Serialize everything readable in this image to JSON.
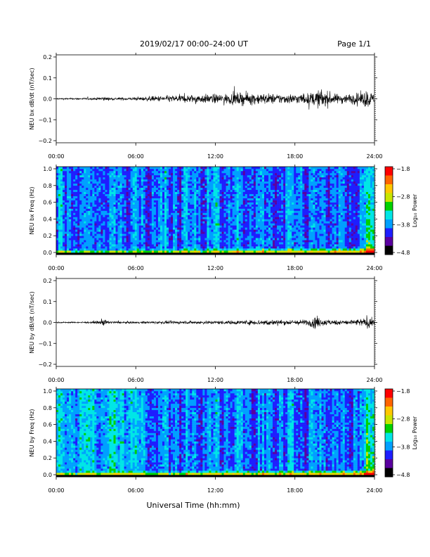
{
  "header": {
    "title": "2019/02/17  00:00–24:00 UT",
    "page": "Page 1/1"
  },
  "footer": {
    "xlabel": "Universal Time (hh:mm)"
  },
  "chart_data": [
    {
      "type": "line",
      "ylabel": "NEU bx dB/dt (nT/sec)",
      "xlim": [
        0,
        24
      ],
      "ylim": [
        -0.2,
        0.2
      ],
      "yticks": [
        "0.2",
        "0.1",
        "0.0",
        "−0.1",
        "−0.2"
      ],
      "xticks": [
        "00:00",
        "06:00",
        "12:00",
        "18:00",
        "24:00"
      ],
      "envelope": {
        "x": [
          0,
          1,
          2,
          3,
          3.5,
          4,
          5,
          6,
          7,
          8,
          9,
          10,
          11,
          12,
          13,
          14,
          15,
          16,
          17,
          18,
          19,
          19.5,
          20,
          20.5,
          21,
          22,
          23,
          23.5,
          24
        ],
        "amp": [
          0.006,
          0.006,
          0.008,
          0.009,
          0.02,
          0.01,
          0.012,
          0.012,
          0.02,
          0.025,
          0.03,
          0.033,
          0.036,
          0.038,
          0.043,
          0.05,
          0.048,
          0.043,
          0.04,
          0.04,
          0.045,
          0.06,
          0.08,
          0.06,
          0.04,
          0.04,
          0.05,
          0.08,
          0.03
        ]
      }
    },
    {
      "type": "heatmap",
      "ylabel": "NEU bx Freq (Hz)",
      "xlim": [
        0,
        24
      ],
      "ylim": [
        0,
        1.0
      ],
      "yticks": [
        "1.0",
        "0.8",
        "0.6",
        "0.4",
        "0.2",
        "0.0"
      ],
      "xticks": [
        "00:00",
        "06:00",
        "12:00",
        "18:00",
        "24:00"
      ],
      "colorbar": {
        "label": "Log₁₀ Power",
        "range": [
          -4.8,
          -1.8
        ],
        "ticks": [
          "−1.8",
          "−2.8",
          "−3.8",
          "−4.8"
        ]
      },
      "colors": [
        "#000000",
        "#5a00a0",
        "#1e1eff",
        "#00a0ff",
        "#00e6e6",
        "#00d200",
        "#c8e600",
        "#ffc800",
        "#ff6400",
        "#ff0000"
      ]
    },
    {
      "type": "line",
      "ylabel": "NEU by dB/dt (nT/sec)",
      "xlim": [
        0,
        24
      ],
      "ylim": [
        -0.2,
        0.2
      ],
      "yticks": [
        "0.2",
        "0.1",
        "0.0",
        "−0.1",
        "−0.2"
      ],
      "xticks": [
        "00:00",
        "06:00",
        "12:00",
        "18:00",
        "24:00"
      ],
      "envelope": {
        "x": [
          0,
          1,
          2,
          3,
          3.5,
          4,
          5,
          6,
          7,
          8,
          9,
          10,
          11,
          12,
          13,
          14,
          15,
          16,
          17,
          18,
          19,
          19.5,
          20,
          21,
          22,
          23,
          23.5,
          24
        ],
        "amp": [
          0.005,
          0.005,
          0.006,
          0.007,
          0.03,
          0.01,
          0.008,
          0.008,
          0.01,
          0.012,
          0.012,
          0.012,
          0.013,
          0.014,
          0.015,
          0.017,
          0.02,
          0.025,
          0.02,
          0.02,
          0.025,
          0.05,
          0.03,
          0.02,
          0.02,
          0.03,
          0.05,
          0.02
        ]
      }
    },
    {
      "type": "heatmap",
      "ylabel": "NEU by Freq (Hz)",
      "xlim": [
        0,
        24
      ],
      "ylim": [
        0,
        1.0
      ],
      "yticks": [
        "1.0",
        "0.8",
        "0.6",
        "0.4",
        "0.2",
        "0.0"
      ],
      "xticks": [
        "00:00",
        "06:00",
        "12:00",
        "18:00",
        "24:00"
      ],
      "colorbar": {
        "label": "Log₁₀ Power",
        "range": [
          -4.8,
          -1.8
        ],
        "ticks": [
          "−1.8",
          "−2.8",
          "−3.8",
          "−4.8"
        ]
      },
      "colors": [
        "#000000",
        "#5a00a0",
        "#1e1eff",
        "#00a0ff",
        "#00e6e6",
        "#00d200",
        "#c8e600",
        "#ffc800",
        "#ff6400",
        "#ff0000"
      ]
    }
  ]
}
